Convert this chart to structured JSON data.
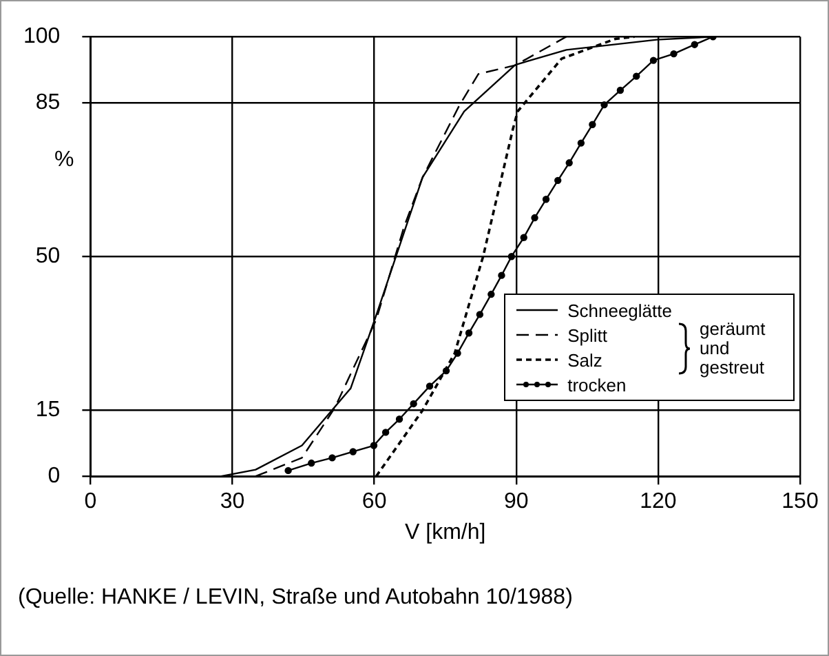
{
  "chart_data": {
    "type": "line",
    "xlabel": "V [km/h]",
    "ylabel": "%",
    "xlim": [
      0,
      150
    ],
    "xticks": [
      0,
      30,
      60,
      90,
      120,
      150
    ],
    "ylim": [
      0,
      100
    ],
    "yticks": [
      0,
      15,
      50,
      85,
      100
    ],
    "grid": true,
    "legend": "right",
    "annotations": [
      "geräumt und gestreut",
      "(Quelle: HANKE / LEVIN, Straße und Autobahn 10/1988)"
    ],
    "series": [
      {
        "name": "Schneeglätte",
        "color": "#000000",
        "line_style": "solid",
        "marker": "none",
        "x": [
          27.6,
          34.9,
          44.7,
          55,
          60.4,
          70.2,
          79,
          89.8,
          100.6,
          119.7,
          132
        ],
        "values": [
          0,
          1.5,
          7,
          20,
          36.6,
          68,
          83,
          93.6,
          97,
          99.3,
          100
        ]
      },
      {
        "name": "Splitt",
        "color": "#000000",
        "line_style": "dashed",
        "marker": "none",
        "x": [
          34.9,
          44.7,
          51.6,
          60.4,
          66.3,
          70.2,
          78,
          82,
          89.8,
          100.6
        ],
        "values": [
          0,
          4.2,
          15.5,
          35.6,
          56.8,
          68,
          84.4,
          91.5,
          93.5,
          100
        ]
      },
      {
        "name": "Salz",
        "color": "#000000",
        "line_style": "dotted",
        "marker": "none",
        "x": [
          60.4,
          70.2,
          77,
          83,
          89.3,
          90.3,
          99.6,
          111,
          115
        ],
        "values": [
          0,
          15,
          28,
          50,
          79,
          83,
          95,
          99.5,
          100
        ]
      },
      {
        "name": "trocken",
        "color": "#000000",
        "line_style": "solid",
        "marker": "circle",
        "x": [
          41.8,
          46.7,
          51.1,
          55.5,
          59.9,
          62.4,
          65.3,
          68.3,
          71.7,
          75.2,
          77.6,
          80,
          82.3,
          84.7,
          86.9,
          89,
          91.6,
          93.9,
          96.3,
          98.8,
          101.2,
          103.7,
          106.1,
          108.6,
          112,
          115.4,
          119,
          123.3,
          127.7,
          131.6
        ],
        "values": [
          1.3,
          3,
          4.2,
          5.6,
          7,
          10,
          13,
          16.5,
          20.5,
          24,
          28,
          32.6,
          36.8,
          41.4,
          45.7,
          50,
          54.3,
          58.8,
          63,
          67.3,
          71.3,
          75.8,
          80,
          84.5,
          87.8,
          91,
          94.6,
          96.1,
          98.2,
          100
        ]
      }
    ]
  }
}
